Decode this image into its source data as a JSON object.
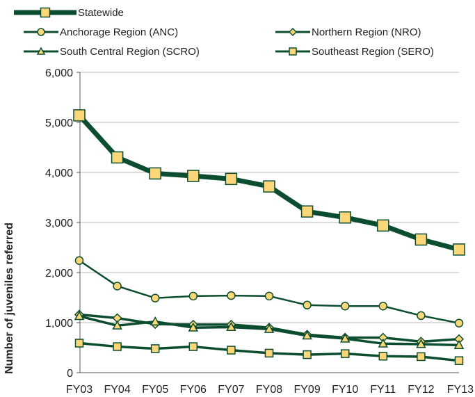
{
  "chart_data": {
    "type": "line",
    "title": "",
    "xlabel": "",
    "ylabel": "Number of juveniles referred",
    "ylim": [
      0,
      6000
    ],
    "y_ticks": [
      "0",
      "1,000",
      "2,000",
      "3,000",
      "4,000",
      "5,000",
      "6,000"
    ],
    "y_tick_values": [
      0,
      1000,
      2000,
      3000,
      4000,
      5000,
      6000
    ],
    "categories": [
      "FY03",
      "FY04",
      "FY05",
      "FY06",
      "FY07",
      "FY08",
      "FY09",
      "FY10",
      "FY11",
      "FY12",
      "FY13"
    ],
    "grid": "horizontal",
    "legend_position": "top",
    "line_color": "#0b4d2e",
    "marker_fill": "#fbd77a",
    "series": [
      {
        "name": "Statewide",
        "marker": "square-large",
        "values": [
          5140,
          4300,
          3980,
          3930,
          3870,
          3720,
          3220,
          3100,
          2940,
          2660,
          2460
        ]
      },
      {
        "name": "Anchorage Region (ANC)",
        "marker": "circle",
        "values": [
          2240,
          1730,
          1490,
          1530,
          1540,
          1530,
          1350,
          1330,
          1330,
          1140,
          990
        ]
      },
      {
        "name": "Northern Region (NRO)",
        "marker": "diamond",
        "values": [
          1160,
          1090,
          970,
          960,
          960,
          900,
          760,
          700,
          700,
          620,
          670
        ]
      },
      {
        "name": "South Central Region (SCRO)",
        "marker": "triangle",
        "values": [
          1130,
          940,
          1020,
          900,
          910,
          870,
          740,
          680,
          580,
          570,
          550
        ]
      },
      {
        "name": "Southeast Region (SERO)",
        "marker": "square",
        "values": [
          590,
          520,
          480,
          520,
          450,
          390,
          360,
          380,
          330,
          320,
          240
        ]
      }
    ]
  }
}
